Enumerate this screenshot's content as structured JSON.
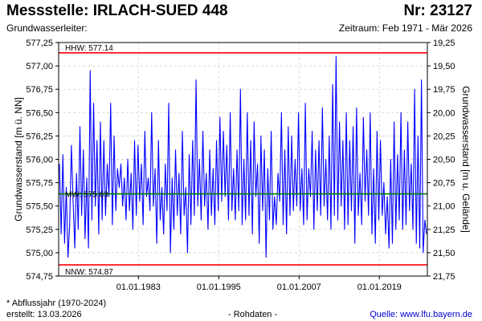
{
  "header": {
    "title": "Messstelle: IRLACH-SUED 448",
    "nr": "Nr: 23127",
    "aquifer": "Grundwasserleiter:",
    "period": "Zeitraum: Feb 1971 - Mär 2026"
  },
  "footer": {
    "footnote": "* Abflussjahr (1970-2024)",
    "created": "erstellt:  13.03.2026",
    "rawdata": "- Rohdaten -",
    "source": "Quelle: www.lfu.bayern.de"
  },
  "colors": {
    "series": "#0000ff",
    "extremes": "#ff0000",
    "mean": "#008000",
    "grid": "#c8c8c8"
  },
  "chart_data": {
    "type": "line",
    "ylabel": "Grundwasserstand [m ü. NN]",
    "y2label": "Grundwasserstand [m u. Gelände]",
    "ylim": [
      574.75,
      577.25
    ],
    "yticks": [
      "574,75",
      "575,00",
      "575,25",
      "575,50",
      "575,75",
      "576,00",
      "576,25",
      "576,50",
      "576,75",
      "577,00",
      "577,25"
    ],
    "y2ticks": [
      "21,75",
      "21,50",
      "21,25",
      "21,00",
      "20,75",
      "20,50",
      "20,25",
      "20,00",
      "19,75",
      "19,50",
      "19,25"
    ],
    "x_range": [
      "1971-02",
      "2026-03"
    ],
    "xticks": [
      "01.01.1983",
      "01.01.1995",
      "01.01.2007",
      "01.01.2019"
    ],
    "grid": true,
    "reference_lines": [
      {
        "label": "HHW: 577.14",
        "value": 577.14,
        "kind": "extreme"
      },
      {
        "label": "MW: 575.63",
        "value": 575.63,
        "kind": "mean"
      },
      {
        "label": "NNW: 574.87",
        "value": 574.87,
        "kind": "extreme"
      }
    ],
    "series": [
      {
        "values": [
          575.95,
          575.2,
          576.05,
          575.1,
          575.7,
          574.95,
          575.3,
          576.15,
          575.55,
          575.05,
          575.85,
          575.25,
          576.35,
          575.4,
          576.1,
          575.15,
          575.8,
          575.05,
          576.95,
          575.35,
          576.6,
          575.5,
          576.2,
          575.2,
          576.4,
          575.35,
          576.2,
          575.4,
          575.95,
          575.6,
          576.6,
          575.3,
          576.25,
          575.45,
          575.9,
          575.7,
          575.95,
          575.5,
          575.8,
          575.35,
          576.0,
          575.45,
          575.85,
          575.25,
          576.2,
          575.4,
          576.15,
          575.55,
          575.95,
          575.3,
          576.3,
          575.6,
          575.8,
          575.45,
          576.5,
          575.5,
          575.9,
          575.1,
          576.2,
          575.35,
          575.7,
          575.2,
          575.95,
          575.45,
          576.6,
          575.0,
          575.8,
          575.25,
          576.1,
          575.4,
          575.85,
          575.2,
          576.3,
          575.4,
          575.7,
          575.0,
          576.05,
          575.3,
          576.2,
          575.4,
          576.85,
          575.5,
          576.0,
          575.35,
          576.3,
          575.5,
          575.85,
          575.25,
          576.1,
          575.4,
          575.9,
          575.3,
          576.2,
          575.45,
          576.45,
          575.55,
          576.3,
          575.6,
          576.15,
          575.35,
          576.5,
          575.45,
          575.9,
          575.35,
          576.1,
          575.45,
          576.75,
          575.3,
          576.0,
          575.35,
          576.5,
          575.4,
          576.2,
          575.2,
          576.4,
          575.6,
          575.95,
          575.1,
          576.25,
          575.45,
          576.1,
          574.95,
          575.9,
          575.35,
          576.3,
          575.25,
          575.6,
          575.3,
          575.85,
          575.55,
          576.5,
          575.3,
          576.1,
          575.2,
          576.35,
          575.4,
          576.25,
          575.45,
          576.0,
          575.5,
          576.5,
          575.45,
          575.9,
          575.3,
          576.6,
          575.35,
          575.9,
          575.6,
          576.3,
          575.25,
          576.1,
          575.45,
          576.2,
          575.4,
          576.55,
          575.5,
          576.0,
          575.35,
          576.25,
          575.25,
          576.8,
          575.4,
          577.1,
          575.35,
          576.4,
          575.5,
          576.2,
          575.25,
          576.5,
          575.3,
          576.2,
          575.45,
          576.35,
          575.1,
          576.55,
          575.4,
          575.85,
          575.3,
          576.45,
          575.55,
          576.1,
          575.4,
          576.5,
          575.2,
          575.9,
          575.1,
          576.3,
          575.35,
          576.2,
          575.4,
          575.75,
          575.2,
          575.6,
          575.05,
          576.0,
          575.1,
          576.4,
          575.25,
          576.05,
          575.35,
          576.5,
          575.25,
          576.1,
          575.3,
          576.4,
          575.45,
          575.95,
          575.25,
          576.75,
          575.1,
          576.25,
          575.05,
          576.85,
          575.0,
          575.35,
          575.2
        ]
      }
    ]
  }
}
